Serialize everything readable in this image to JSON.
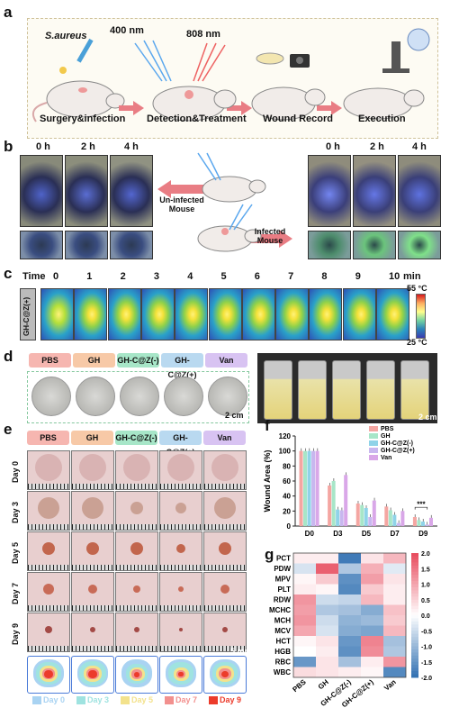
{
  "panels": {
    "a": "a",
    "b": "b",
    "c": "c",
    "d": "d",
    "e": "e",
    "f": "f",
    "g": "g"
  },
  "panel_a": {
    "bacteria": "S.aureus",
    "wave1": "400 nm",
    "wave2": "808 nm",
    "steps": [
      "Surgery&infection",
      "Detection&Treatment",
      "Wound Record",
      "Execution"
    ]
  },
  "panel_b": {
    "times": [
      "0 h",
      "2 h",
      "4 h"
    ],
    "uninfected": "Un-infected Mouse",
    "infected": "Infected Mouse"
  },
  "panel_c": {
    "time_label": "Time",
    "times": [
      "0",
      "1",
      "2",
      "3",
      "4",
      "5",
      "6",
      "7",
      "8",
      "9",
      "10"
    ],
    "unit": "min",
    "sample": "GH-C@Z(+)",
    "scale_max": "55 °C",
    "scale_min": "25 °C"
  },
  "panel_d": {
    "groups": [
      "PBS",
      "GH",
      "GH-C@Z(-)",
      "GH-C@Z(+)",
      "Van"
    ],
    "scale": "2 cm",
    "scale2": "2 cm"
  },
  "panel_e": {
    "groups": [
      "PBS",
      "GH",
      "GH-C@Z(-)",
      "GH-C@Z(+)",
      "Van"
    ],
    "days": [
      "Day 0",
      "Day 3",
      "Day 5",
      "Day 7",
      "Day 9"
    ],
    "scale": "5 mm",
    "legend": [
      "Day 0",
      "Day 3",
      "Day 5",
      "Day 7",
      "Day 9"
    ],
    "legend_colors": [
      "#a9d3f2",
      "#9fe3e0",
      "#f3e28c",
      "#f2908e",
      "#ec3b2b"
    ]
  },
  "chart_data": [
    {
      "type": "bar",
      "panel": "f",
      "ylabel": "Wound Area (%)",
      "categories": [
        "D0",
        "D3",
        "D5",
        "D7",
        "D9"
      ],
      "ylim": [
        0,
        120
      ],
      "yticks": [
        "0",
        "20",
        "40",
        "60",
        "80",
        "100",
        "120"
      ],
      "colors": [
        "#f4a6a2",
        "#a7e6c8",
        "#8fd3e8",
        "#c8b7ef",
        "#d9a7e8"
      ],
      "series": [
        {
          "name": "PBS",
          "values": [
            100,
            54,
            30,
            26,
            12
          ]
        },
        {
          "name": "GH",
          "values": [
            100,
            60,
            28,
            21,
            8
          ]
        },
        {
          "name": "GH-C@Z(-)",
          "values": [
            100,
            22,
            24,
            15,
            6
          ]
        },
        {
          "name": "GH-C@Z(+)",
          "values": [
            100,
            21,
            12,
            4,
            2
          ]
        },
        {
          "name": "Van",
          "values": [
            100,
            68,
            34,
            20,
            11
          ]
        }
      ],
      "annotation": "***"
    },
    {
      "type": "heatmap",
      "panel": "g",
      "rows": [
        "PCT",
        "PDW",
        "MPV",
        "PLT",
        "RDW",
        "MCHC",
        "MCH",
        "MCV",
        "HCT",
        "HGB",
        "RBC",
        "WBC"
      ],
      "columns": [
        "PBS",
        "GH",
        "GH-C@Z(-)",
        "GH-C@Z(+)",
        "Van"
      ],
      "values": [
        [
          0.2,
          0.2,
          -1.9,
          0.3,
          0.8
        ],
        [
          -0.4,
          1.8,
          -0.8,
          0.9,
          -0.3
        ],
        [
          0.1,
          0.6,
          -1.6,
          1.1,
          0.3
        ],
        [
          0.2,
          0.1,
          -1.7,
          0.6,
          0.2
        ],
        [
          1.2,
          -0.5,
          -0.6,
          0.8,
          0.2
        ],
        [
          1.1,
          -0.8,
          -0.9,
          -1.2,
          0.7
        ],
        [
          1.2,
          -0.5,
          -1.1,
          -1.0,
          0.6
        ],
        [
          1.0,
          -0.4,
          -1.2,
          -1.3,
          0.8
        ],
        [
          0.1,
          0.3,
          -1.5,
          1.4,
          -0.9
        ],
        [
          0.0,
          0.2,
          -1.6,
          1.3,
          -0.8
        ],
        [
          -1.5,
          0.3,
          -0.9,
          0.2,
          1.2
        ],
        [
          0.4,
          0.3,
          0.2,
          0.1,
          -1.7
        ]
      ],
      "colorbar": [
        "2.0",
        "1.5",
        "1.0",
        "0.5",
        "0.0",
        "-0.5",
        "-1.0",
        "-1.5",
        "-2.0"
      ]
    }
  ]
}
